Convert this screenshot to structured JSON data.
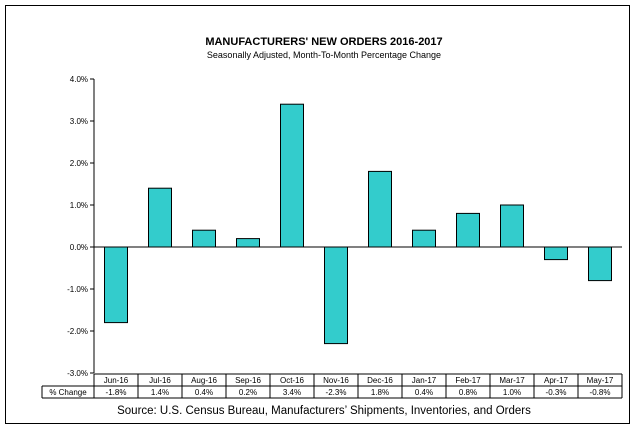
{
  "chart_data": {
    "type": "bar",
    "title": "MANUFACTURERS' NEW ORDERS 2016-2017",
    "subtitle": "Seasonally Adjusted,  Month-To-Month  Percentage Change",
    "categories": [
      "Jun-16",
      "Jul-16",
      "Aug-16",
      "Sep-16",
      "Oct-16",
      "Nov-16",
      "Dec-16",
      "Jan-17",
      "Feb-17",
      "Mar-17",
      "Apr-17",
      "May-17"
    ],
    "values": [
      -1.8,
      1.4,
      0.4,
      0.2,
      3.4,
      -2.3,
      1.8,
      0.4,
      0.8,
      1.0,
      -0.3,
      -0.8
    ],
    "table_row_label": "% Change",
    "table_values": [
      "-1.8%",
      "1.4%",
      "0.4%",
      "0.2%",
      "3.4%",
      "-2.3%",
      "1.8%",
      "0.4%",
      "0.8%",
      "1.0%",
      "-0.3%",
      "-0.8%"
    ],
    "ylim": [
      -3.0,
      4.0
    ],
    "yticks": [
      4.0,
      3.0,
      2.0,
      1.0,
      0.0,
      -1.0,
      -2.0,
      -3.0
    ],
    "ytick_labels": [
      "4.0%",
      "3.0%",
      "2.0%",
      "1.0%",
      "0.0%",
      "-1.0%",
      "-2.0%",
      "-3.0%"
    ],
    "bar_color": "#33CCCC",
    "grid": false,
    "legend": "none"
  },
  "source": "Source: U.S. Census Bureau, Manufacturers’ Shipments, Inventories, and Orders"
}
